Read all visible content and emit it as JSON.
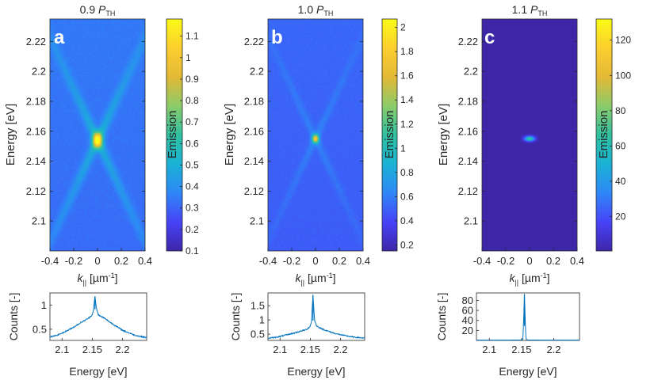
{
  "figure": {
    "colormap": [
      "#3e26a8",
      "#4743f8",
      "#2e87f7",
      "#1ab2d4",
      "#30c0a0",
      "#8bcb6a",
      "#e3b936",
      "#fcce2e",
      "#f9fb15"
    ],
    "line_color": "#0072bd",
    "panel_letter_color": "#ffffff"
  },
  "chart_data": [
    {
      "type": "heatmap",
      "panel": "a",
      "title_num": "0.9 ",
      "title_P": "P",
      "title_sub": "TH",
      "xlabel_k": "k",
      "xlabel_sub": "||",
      "xlabel_unit": " [µm",
      "xlabel_exp": "-1",
      "xlabel_end": "]",
      "ylabel": "Energy [eV]",
      "xlim": [
        -0.4,
        0.4
      ],
      "ylim": [
        2.08,
        2.235
      ],
      "xticks": [
        "-0.4",
        "-0.2",
        "0",
        "0.2",
        "0.4"
      ],
      "yticks": [
        "2.1",
        "2.12",
        "2.14",
        "2.16",
        "2.18",
        "2.2",
        "2.22"
      ],
      "colorbar_label": "Emission",
      "colorbar_range": [
        0.1,
        1.18
      ],
      "colorbar_ticks": [
        "0.1",
        "0.2",
        "0.3",
        "0.4",
        "0.5",
        "0.6",
        "0.7",
        "0.8",
        "0.9",
        "1",
        "1.1"
      ],
      "background_level": 0.33,
      "peak_energy": 2.154,
      "peak_level": 0.85,
      "spot_sigma_k": 0.028,
      "spot_sigma_e": 0.0035,
      "branch_level": 0.17,
      "branch_slope_eV_per_um": 0.17,
      "branch_sigma_k": 0.03
    },
    {
      "type": "heatmap",
      "panel": "b",
      "title_num": "1.0 ",
      "title_P": "P",
      "title_sub": "TH",
      "xlabel_k": "k",
      "xlabel_sub": "||",
      "xlabel_unit": " [µm",
      "xlabel_exp": "-1",
      "xlabel_end": "]",
      "ylabel": "Energy [eV]",
      "xlim": [
        -0.4,
        0.4
      ],
      "ylim": [
        2.08,
        2.235
      ],
      "xticks": [
        "-0.4",
        "-0.2",
        "0",
        "0.2",
        "0.4"
      ],
      "yticks": [
        "2.1",
        "2.12",
        "2.14",
        "2.16",
        "2.18",
        "2.2",
        "2.22"
      ],
      "colorbar_label": "Emission",
      "colorbar_range": [
        0.15,
        2.07
      ],
      "colorbar_ticks": [
        "0.2",
        "0.4",
        "0.6",
        "0.8",
        "1",
        "1.2",
        "1.4",
        "1.6",
        "1.8",
        "2"
      ],
      "background_level": 0.5,
      "peak_energy": 2.155,
      "peak_level": 1.2,
      "spot_sigma_k": 0.02,
      "spot_sigma_e": 0.002,
      "branch_level": 0.12,
      "branch_slope_eV_per_um": 0.17,
      "branch_sigma_k": 0.025
    },
    {
      "type": "heatmap",
      "panel": "c",
      "title_num": "1.1 ",
      "title_P": "P",
      "title_sub": "TH",
      "xlabel_k": "k",
      "xlabel_sub": "||",
      "xlabel_unit": " [µm",
      "xlabel_exp": "-1",
      "xlabel_end": "]",
      "ylabel": "Energy [eV]",
      "xlim": [
        -0.4,
        0.4
      ],
      "ylim": [
        2.08,
        2.235
      ],
      "xticks": [
        "-0.4",
        "-0.2",
        "0",
        "0.2",
        "0.4"
      ],
      "yticks": [
        "2.1",
        "2.12",
        "2.14",
        "2.16",
        "2.18",
        "2.2",
        "2.22"
      ],
      "colorbar_label": "Emission",
      "colorbar_range": [
        0.5,
        132
      ],
      "colorbar_ticks": [
        "20",
        "40",
        "60",
        "80",
        "100",
        "120"
      ],
      "background_level": 0.6,
      "peak_energy": 2.155,
      "peak_level": 70,
      "spot_sigma_k": 0.03,
      "spot_sigma_e": 0.0012,
      "branch_level": 0,
      "branch_slope_eV_per_um": 0.17,
      "branch_sigma_k": 0.025
    },
    {
      "type": "line",
      "panel": "a-spectrum",
      "xlabel": "Energy [eV]",
      "ylabel": "Counts [-]",
      "xlim": [
        2.08,
        2.24
      ],
      "ylim": [
        0.27,
        1.25
      ],
      "xticks": [
        "2.1",
        "2.15",
        "2.2"
      ],
      "yticks": [
        "0.5",
        "1"
      ],
      "x": [
        2.08,
        2.09,
        2.1,
        2.11,
        2.12,
        2.13,
        2.14,
        2.145,
        2.15,
        2.152,
        2.1545,
        2.157,
        2.16,
        2.165,
        2.17,
        2.18,
        2.19,
        2.2,
        2.21,
        2.22,
        2.23,
        2.24
      ],
      "y": [
        0.34,
        0.37,
        0.42,
        0.48,
        0.55,
        0.63,
        0.7,
        0.74,
        0.8,
        0.9,
        1.18,
        0.92,
        0.8,
        0.76,
        0.73,
        0.64,
        0.56,
        0.48,
        0.43,
        0.38,
        0.35,
        0.33
      ]
    },
    {
      "type": "line",
      "panel": "b-spectrum",
      "xlabel": "Energy [eV]",
      "ylabel": "Counts [-]",
      "xlim": [
        2.08,
        2.24
      ],
      "ylim": [
        0.28,
        1.95
      ],
      "xticks": [
        "2.1",
        "2.15",
        "2.2"
      ],
      "yticks": [
        "0.5",
        "1",
        "1.5"
      ],
      "x": [
        2.08,
        2.09,
        2.1,
        2.11,
        2.12,
        2.13,
        2.14,
        2.145,
        2.15,
        2.152,
        2.1545,
        2.157,
        2.16,
        2.165,
        2.17,
        2.18,
        2.19,
        2.2,
        2.21,
        2.22,
        2.23,
        2.24
      ],
      "y": [
        0.36,
        0.38,
        0.42,
        0.47,
        0.52,
        0.58,
        0.64,
        0.68,
        0.78,
        0.95,
        1.88,
        1.0,
        0.8,
        0.73,
        0.68,
        0.6,
        0.53,
        0.48,
        0.44,
        0.4,
        0.38,
        0.36
      ]
    },
    {
      "type": "line",
      "panel": "c-spectrum",
      "xlabel": "Energy [eV]",
      "ylabel": "Counts [-]",
      "xlim": [
        2.08,
        2.24
      ],
      "ylim": [
        0,
        95
      ],
      "xticks": [
        "2.1",
        "2.15",
        "2.2"
      ],
      "yticks": [
        "20",
        "40",
        "60",
        "80"
      ],
      "x": [
        2.08,
        2.12,
        2.15,
        2.152,
        2.153,
        2.1545,
        2.156,
        2.157,
        2.16,
        2.2,
        2.24
      ],
      "y": [
        0.6,
        0.6,
        0.8,
        2,
        30,
        93,
        28,
        2,
        0.8,
        0.6,
        0.6
      ]
    }
  ],
  "panel_letters": [
    "a",
    "b",
    "c"
  ]
}
